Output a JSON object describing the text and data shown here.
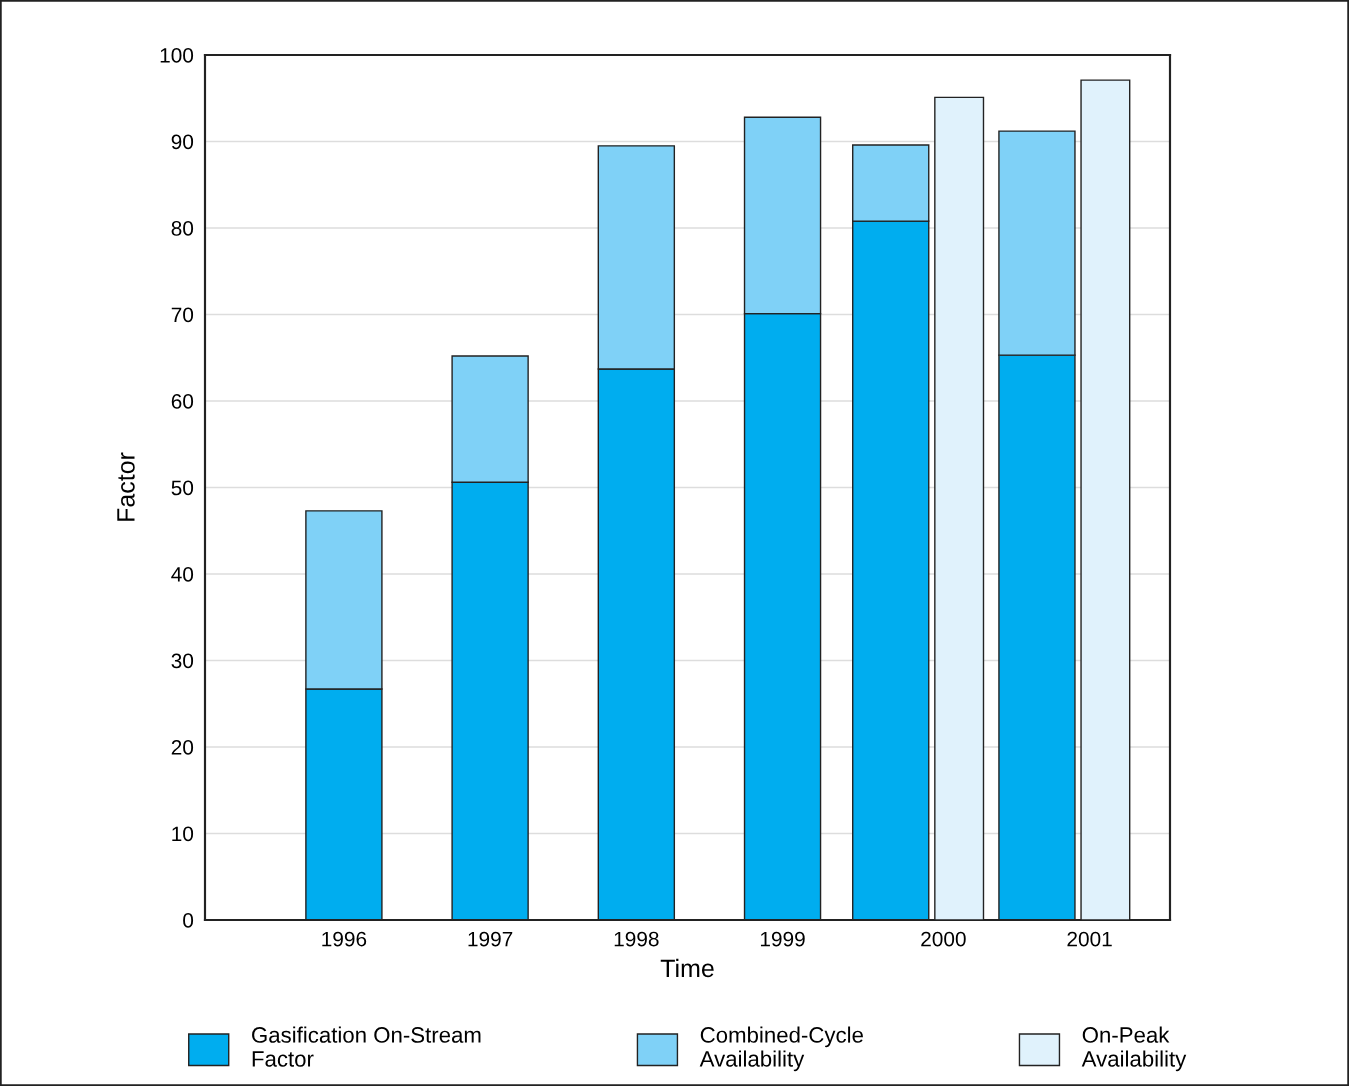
{
  "chart_data": [
    {
      "type": "bar",
      "stacked": true,
      "xlabel": "Time",
      "ylabel": "Factor",
      "categories": [
        "1996",
        "1997",
        "1998",
        "1999",
        "2000",
        "2001"
      ],
      "series": [
        {
          "name": "Gasification On-Stream Factor",
          "color": "#00adef",
          "values": [
            26.7,
            50.6,
            63.7,
            70.1,
            80.8,
            65.3
          ]
        },
        {
          "name": "Combined-Cycle Availability",
          "color": "#7fd1f7",
          "values": [
            20.6,
            14.6,
            25.8,
            22.7,
            8.8,
            25.9
          ]
        }
      ],
      "ylim": [
        0,
        100
      ],
      "yticks": [
        0,
        10,
        20,
        30,
        40,
        50,
        60,
        70,
        80,
        90,
        100
      ],
      "grid": "y",
      "legend": "bottom"
    },
    {
      "type": "bar",
      "tick_labels": false,
      "categories": [
        "1996",
        "1997",
        "1998",
        "1999",
        "2000",
        "2001"
      ],
      "series": [
        {
          "name": "On-Peak Availability",
          "color": "#e0f2fc",
          "values": [
            null,
            null,
            null,
            null,
            95.1,
            97.1
          ]
        }
      ],
      "ylim": [
        0,
        100
      ],
      "legend": "bottom"
    }
  ]
}
